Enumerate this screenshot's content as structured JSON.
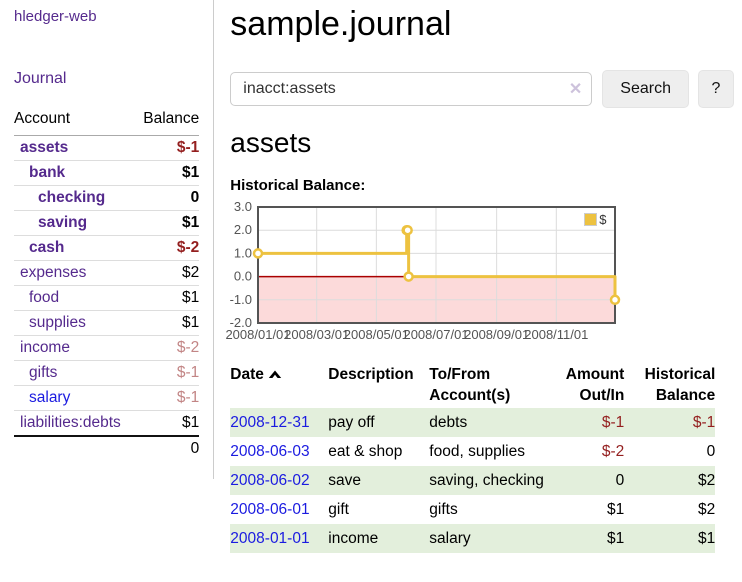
{
  "sidebar": {
    "brand": "hledger-web",
    "nav": {
      "journal": "Journal"
    },
    "accounts_table": {
      "headers": {
        "account": "Account",
        "balance": "Balance"
      },
      "rows": [
        {
          "account": "assets",
          "balance": "$-1",
          "depth": 0,
          "in_focus": true,
          "balance_style": "negative-strong"
        },
        {
          "account": "bank",
          "balance": "$1",
          "depth": 1,
          "in_focus": true,
          "balance_style": "normal"
        },
        {
          "account": "checking",
          "balance": "0",
          "depth": 2,
          "in_focus": true,
          "balance_style": "normal"
        },
        {
          "account": "saving",
          "balance": "$1",
          "depth": 2,
          "in_focus": true,
          "balance_style": "normal"
        },
        {
          "account": "cash",
          "balance": "$-2",
          "depth": 1,
          "in_focus": true,
          "balance_style": "negative-strong"
        },
        {
          "account": "expenses",
          "balance": "$2",
          "depth": 0,
          "in_focus": false,
          "balance_style": "normal"
        },
        {
          "account": "food",
          "balance": "$1",
          "depth": 1,
          "in_focus": false,
          "balance_style": "normal"
        },
        {
          "account": "supplies",
          "balance": "$1",
          "depth": 1,
          "in_focus": false,
          "balance_style": "normal"
        },
        {
          "account": "income",
          "balance": "$-2",
          "depth": 0,
          "in_focus": false,
          "balance_style": "negative-muted"
        },
        {
          "account": "gifts",
          "balance": "$-1",
          "depth": 1,
          "in_focus": false,
          "balance_style": "negative-muted"
        },
        {
          "account": "salary",
          "balance": "$-1",
          "depth": 1,
          "in_focus": false,
          "balance_style": "negative-muted",
          "link_style": "unvisited"
        },
        {
          "account": "liabilities:debts",
          "balance": "$1",
          "depth": 0,
          "in_focus": false,
          "balance_style": "normal"
        }
      ],
      "total": "0"
    }
  },
  "main": {
    "title": "sample.journal",
    "search": {
      "value": "inacct:assets",
      "clear_symbol": "✕",
      "button_label": "Search",
      "help_label": "?"
    },
    "account_heading": "assets",
    "section_label": "Historical Balance:"
  },
  "chart_data": {
    "type": "line",
    "step": true,
    "title": "Historical Balance:",
    "ylim": [
      -2,
      3
    ],
    "yticks": [
      "3.0",
      "2.0",
      "1.0",
      "0.0",
      "-1.0",
      "-2.0"
    ],
    "xrange": [
      "2008-01-01",
      "2008-12-31"
    ],
    "xticks": [
      {
        "date": "2008-01-01",
        "label": "2008/01/01"
      },
      {
        "date": "2008-03-01",
        "label": "2008/03/01"
      },
      {
        "date": "2008-05-01",
        "label": "2008/05/01"
      },
      {
        "date": "2008-07-01",
        "label": "2008/07/01"
      },
      {
        "date": "2008-09-01",
        "label": "2008/09/01"
      },
      {
        "date": "2008-11-01",
        "label": "2008/11/01"
      }
    ],
    "series": [
      {
        "name": "$",
        "color": "#edc240",
        "points": [
          {
            "date": "2008-01-01",
            "value": 1
          },
          {
            "date": "2008-06-01",
            "value": 2
          },
          {
            "date": "2008-06-02",
            "value": 2
          },
          {
            "date": "2008-06-03",
            "value": 0
          },
          {
            "date": "2008-12-31",
            "value": -1
          }
        ]
      }
    ],
    "legend_position": "ne",
    "grid": true,
    "colors": {
      "grid": "#dcdcdc",
      "border": "#545454",
      "zero_line": "#aa0000",
      "negative_fill": "#fcdada",
      "marker_fill": "#ffffff"
    }
  },
  "register": {
    "headers": {
      "date": "Date",
      "description": "Description",
      "accounts": "To/From Account(s)",
      "amount": "Amount Out/In",
      "balance": "Historical Balance"
    },
    "sort": {
      "column": "date",
      "direction": "ascending"
    },
    "rows": [
      {
        "date": "2008-12-31",
        "description": "pay off",
        "accounts": "debts",
        "amount": "$-1",
        "balance": "$-1",
        "amount_negative": true,
        "balance_negative": true
      },
      {
        "date": "2008-06-03",
        "description": "eat & shop",
        "accounts": "food, supplies",
        "amount": "$-2",
        "balance": "0",
        "amount_negative": true,
        "balance_negative": false
      },
      {
        "date": "2008-06-02",
        "description": "save",
        "accounts": "saving, checking",
        "amount": "0",
        "balance": "$2",
        "amount_negative": false,
        "balance_negative": false
      },
      {
        "date": "2008-06-01",
        "description": "gift",
        "accounts": "gifts",
        "amount": "$1",
        "balance": "$2",
        "amount_negative": false,
        "balance_negative": false
      },
      {
        "date": "2008-01-01",
        "description": "income",
        "accounts": "salary",
        "amount": "$1",
        "balance": "$1",
        "amount_negative": false,
        "balance_negative": false
      }
    ]
  }
}
